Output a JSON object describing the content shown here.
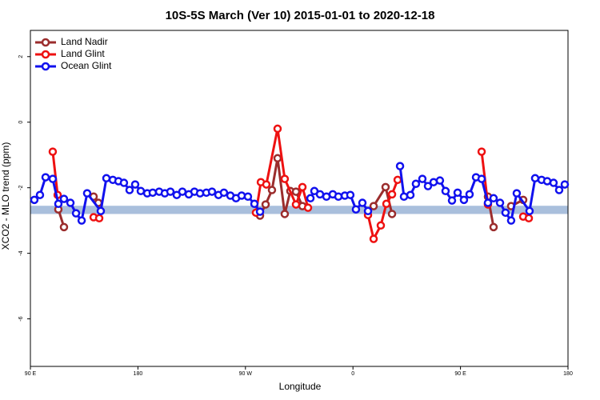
{
  "chart_data": {
    "type": "line",
    "title": "10S-5S March (Ver 10)   2015-01-01 to 2020-12-18",
    "xlabel": "Longitude",
    "ylabel": "XCO2 - MLO trend (ppm)",
    "xlim": [
      90,
      540
    ],
    "ylim": [
      -7.45,
      2.8
    ],
    "xticks": [
      {
        "value": 90,
        "label": "90 E"
      },
      {
        "value": 180,
        "label": "180"
      },
      {
        "value": 270,
        "label": "90 W"
      },
      {
        "value": 360,
        "label": "0"
      },
      {
        "value": 450,
        "label": "90 E"
      },
      {
        "value": 540,
        "label": "180"
      }
    ],
    "yticks": [
      2,
      0,
      -2,
      -4,
      -6
    ],
    "band": {
      "range": [
        -2.8,
        -2.55
      ],
      "color": "#a9bfdc"
    },
    "legend": "top-left",
    "series": [
      {
        "name": "Land Nadir",
        "color": "#9b2d2d",
        "x": [
          113.4,
          118.1,
          null,
          142.9,
          146.9,
          null,
          282.2,
          286.9,
          292.2,
          296.9,
          302.9,
          307.6,
          312.3,
          317.7,
          null,
          377.3,
          387.3,
          392.7,
          null,
          473.0,
          477.7,
          null,
          492.4,
          502.5
        ],
        "values": [
          -2.66,
          -3.2,
          null,
          -2.27,
          -2.46,
          null,
          -2.85,
          -2.51,
          -2.07,
          -1.1,
          -2.8,
          -2.1,
          -2.12,
          -2.56,
          null,
          -2.56,
          -1.98,
          -2.8,
          null,
          -2.27,
          -3.2,
          null,
          -2.56,
          -2.37
        ]
      },
      {
        "name": "Land Glint",
        "color": "#ee1111",
        "x": [
          108.7,
          112.8,
          null,
          142.9,
          147.6,
          null,
          278.8,
          282.9,
          287.5,
          296.9,
          302.9,
          312.3,
          317.7,
          322.4,
          null,
          372.6,
          377.3,
          383.3,
          388.0,
          392.7,
          397.4,
          null,
          467.7,
          473.0,
          null,
          502.5,
          507.2
        ],
        "values": [
          -0.9,
          -2.22,
          null,
          -2.9,
          -2.93,
          null,
          -2.76,
          -1.83,
          -1.9,
          -0.2,
          -1.73,
          -2.51,
          -1.98,
          -2.61,
          null,
          -2.83,
          -3.56,
          -3.15,
          -2.49,
          -2.2,
          -1.76,
          null,
          -0.9,
          -2.51,
          null,
          -2.88,
          -2.93
        ]
      },
      {
        "name": "Ocean Glint",
        "color": "#1111ee",
        "x": [
          93.3,
          98.0,
          102.7,
          108.7,
          113.4,
          118.1,
          123.5,
          128.2,
          132.9,
          137.5,
          148.9,
          153.6,
          159.0,
          163.7,
          168.3,
          173.0,
          177.7,
          182.4,
          187.8,
          192.4,
          197.8,
          202.5,
          207.2,
          212.5,
          217.2,
          222.6,
          227.3,
          232.0,
          237.3,
          242.0,
          247.4,
          252.0,
          257.4,
          262.1,
          266.8,
          272.1,
          277.5,
          282.2,
          null,
          324.4,
          327.7,
          332.4,
          337.8,
          343.1,
          347.8,
          353.2,
          357.8,
          362.5,
          367.9,
          372.6,
          null,
          399.4,
          402.7,
          408.1,
          412.7,
          418.1,
          422.8,
          427.5,
          432.8,
          437.5,
          442.9,
          447.6,
          452.9,
          457.6,
          463.0,
          467.7,
          473.0,
          477.7,
          483.1,
          487.7,
          492.4,
          497.1,
          507.8,
          512.5,
          517.9,
          522.6,
          527.9,
          532.6,
          537.3
        ],
        "values": [
          -2.37,
          -2.22,
          -1.68,
          -1.73,
          -2.49,
          -2.34,
          -2.46,
          -2.78,
          -3.0,
          -2.17,
          -2.71,
          -1.71,
          -1.76,
          -1.8,
          -1.85,
          -2.07,
          -1.9,
          -2.1,
          -2.17,
          -2.15,
          -2.12,
          -2.17,
          -2.12,
          -2.22,
          -2.12,
          -2.2,
          -2.12,
          -2.17,
          -2.15,
          -2.12,
          -2.22,
          -2.15,
          -2.24,
          -2.32,
          -2.24,
          -2.27,
          -2.49,
          -2.73,
          null,
          -2.32,
          -2.1,
          -2.2,
          -2.27,
          -2.2,
          -2.27,
          -2.24,
          -2.22,
          -2.66,
          -2.46,
          -2.71,
          null,
          -1.34,
          -2.27,
          -2.22,
          -1.88,
          -1.73,
          -1.95,
          -1.83,
          -1.78,
          -2.1,
          -2.39,
          -2.15,
          -2.37,
          -2.2,
          -1.68,
          -1.73,
          -2.46,
          -2.32,
          -2.46,
          -2.76,
          -3.0,
          -2.17,
          -2.71,
          -1.71,
          -1.76,
          -1.8,
          -1.85,
          -2.07,
          -1.9
        ]
      }
    ]
  }
}
